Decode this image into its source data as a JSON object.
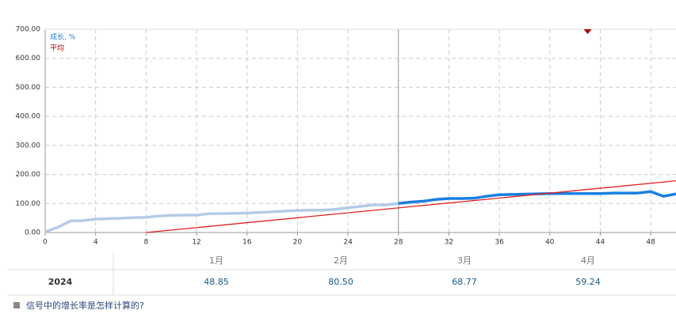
{
  "chart_data": {
    "type": "line",
    "xlim": [
      0,
      50
    ],
    "xticks": [
      0,
      4,
      8,
      12,
      16,
      20,
      24,
      28,
      32,
      36,
      40,
      44,
      48
    ],
    "ylim": [
      0,
      700
    ],
    "yticks": [
      {
        "value": 0,
        "label": "0.00"
      },
      {
        "value": 100,
        "label": "100.00"
      },
      {
        "value": 200,
        "label": "200.00"
      },
      {
        "value": 300,
        "label": "300.00"
      },
      {
        "value": 400,
        "label": "400.00"
      },
      {
        "value": 500,
        "label": "500.00"
      },
      {
        "value": 600,
        "label": "600.00"
      },
      {
        "value": 700,
        "label": "700.00"
      }
    ],
    "grid": true,
    "marker_x": 28,
    "series": [
      {
        "name": "成长, %",
        "color": "#1a7fe0",
        "past_color": "#b4cbe6",
        "x": [
          0,
          1,
          2,
          3,
          4,
          5,
          6,
          7,
          8,
          9,
          10,
          11,
          12,
          13,
          14,
          15,
          16,
          17,
          18,
          19,
          20,
          21,
          22,
          23,
          24,
          25,
          26,
          27,
          28,
          29,
          30,
          31,
          32,
          33,
          34,
          35,
          36,
          37,
          38,
          39,
          40,
          41,
          42,
          43,
          44,
          45,
          46,
          47,
          48,
          49,
          50
        ],
        "values": [
          2,
          18,
          40,
          41,
          46,
          48,
          49,
          51,
          52,
          57,
          59,
          60,
          60,
          65,
          65,
          66,
          67,
          69,
          71,
          74,
          76,
          77,
          77,
          80,
          85,
          90,
          95,
          95,
          100,
          105,
          108,
          114,
          117,
          117,
          118,
          125,
          130,
          131,
          132,
          133,
          134,
          134,
          134,
          134,
          134,
          136,
          136,
          136,
          141,
          125,
          133
        ]
      },
      {
        "name": "平均",
        "color": "#e02020",
        "legend_color": "#a00000",
        "x": [
          8,
          50
        ],
        "values": [
          0,
          178
        ]
      }
    ],
    "point_marker": {
      "x": 43,
      "y": 700,
      "color": "#b00000"
    }
  },
  "table": {
    "columns": [
      "1月",
      "2月",
      "3月",
      "4月"
    ],
    "rows": [
      [
        "2024",
        "48.85",
        "80.50",
        "68.77",
        "59.24"
      ]
    ]
  },
  "footer": {
    "link": "信号中的增长率是怎样计算的?"
  }
}
